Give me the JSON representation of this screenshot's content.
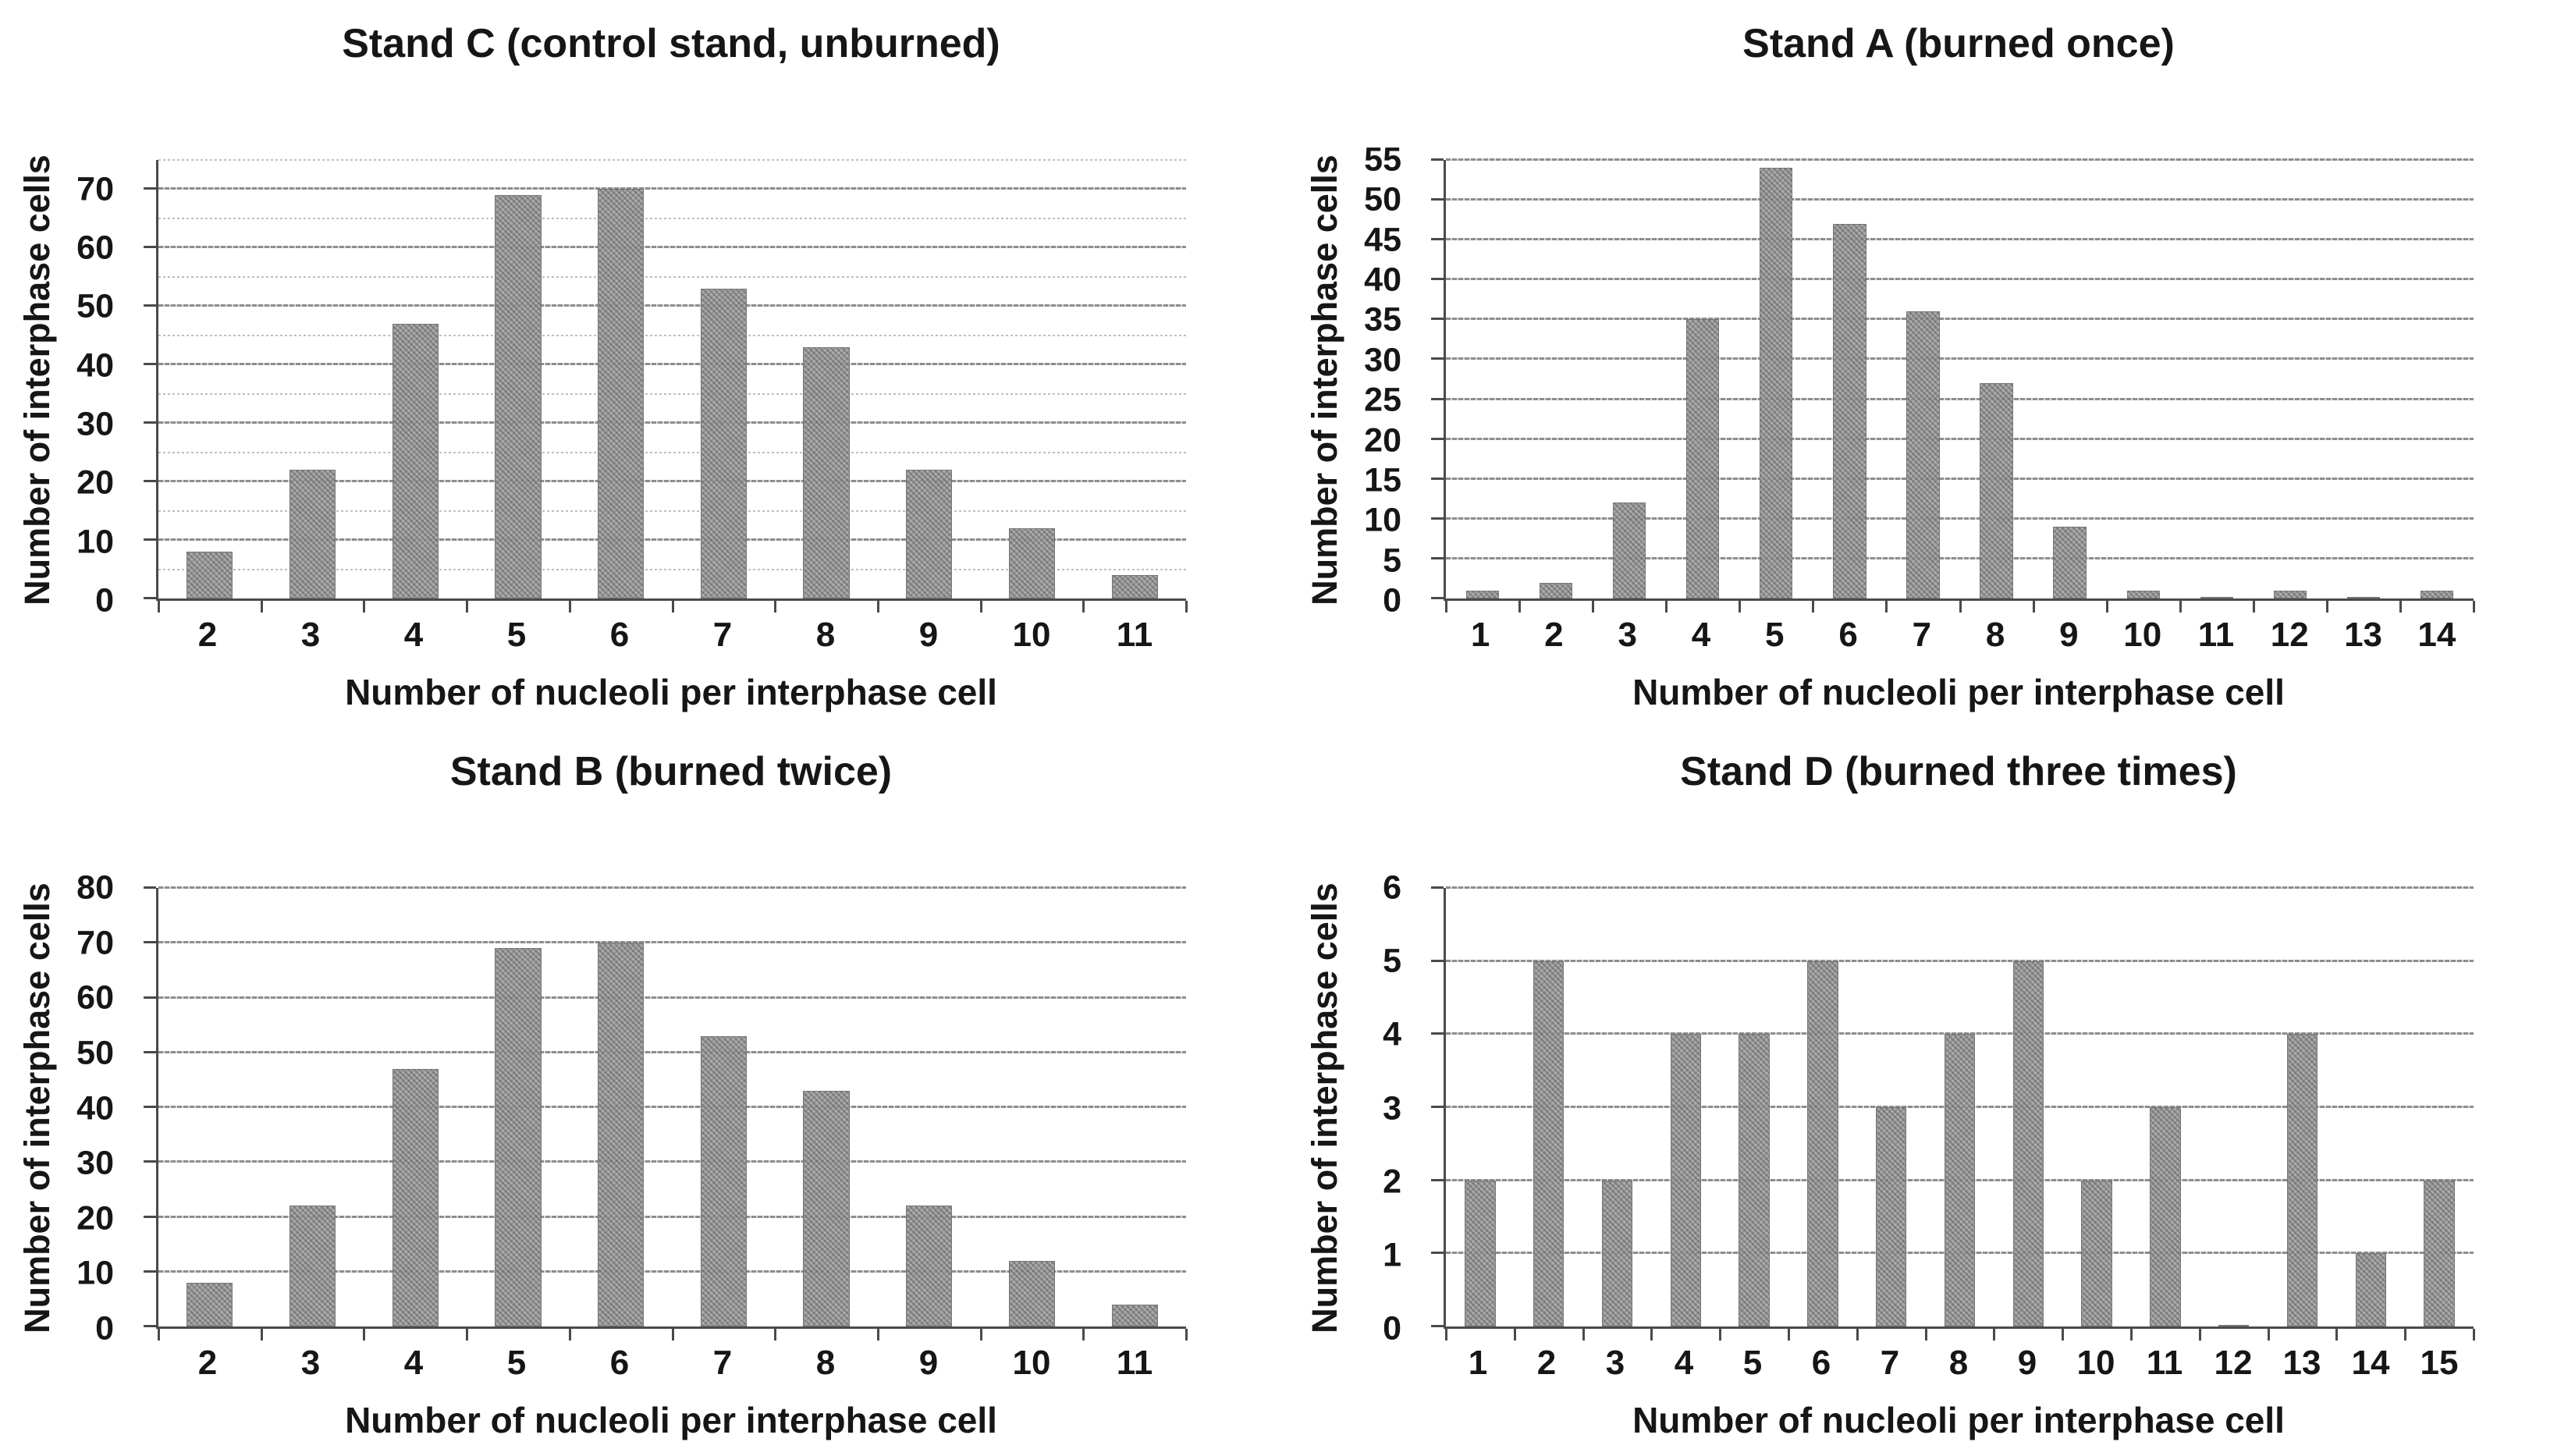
{
  "page": {
    "background": "#ffffff"
  },
  "colors": {
    "bar_fill": "#939393",
    "bar_border": "#6e6e6e",
    "major_gridline": "#8d8d8d",
    "minor_gridline": "#bfbfbf",
    "axis": "#4a4a4a",
    "text": "#161616"
  },
  "chart_data": [
    {
      "type": "bar",
      "title": "Stand C (control stand, unburned)",
      "xlabel": "Number of nucleoli per interphase cell",
      "ylabel": "Number of interphase cells",
      "categories": [
        "2",
        "3",
        "4",
        "5",
        "6",
        "7",
        "8",
        "9",
        "10",
        "11"
      ],
      "values": [
        8,
        22,
        47,
        69,
        70,
        53,
        43,
        22,
        12,
        4
      ],
      "ylim": [
        0,
        75
      ],
      "y_ticks": [
        0,
        10,
        20,
        30,
        40,
        50,
        60,
        70
      ],
      "grid_step": 5,
      "grid": "on",
      "legend": "none"
    },
    {
      "type": "bar",
      "title": "Stand A (burned once)",
      "xlabel": "Number of nucleoli per interphase cell",
      "ylabel": "Number of interphase cells",
      "categories": [
        "1",
        "2",
        "3",
        "4",
        "5",
        "6",
        "7",
        "8",
        "9",
        "10",
        "11",
        "12",
        "13",
        "14"
      ],
      "values": [
        1,
        2,
        12,
        35,
        54,
        47,
        36,
        27,
        9,
        1,
        0,
        1,
        0,
        1
      ],
      "ylim": [
        0,
        55
      ],
      "y_ticks": [
        0,
        5,
        10,
        15,
        20,
        25,
        30,
        35,
        40,
        45,
        50,
        55
      ],
      "grid_step": 5,
      "grid": "on",
      "legend": "none"
    },
    {
      "type": "bar",
      "title": "Stand B (burned twice)",
      "xlabel": "Number of nucleoli per interphase cell",
      "ylabel": "Number of interphase cells",
      "categories": [
        "2",
        "3",
        "4",
        "5",
        "6",
        "7",
        "8",
        "9",
        "10",
        "11"
      ],
      "values": [
        8,
        22,
        47,
        69,
        70,
        53,
        43,
        22,
        12,
        4
      ],
      "ylim": [
        0,
        80
      ],
      "y_ticks": [
        0,
        10,
        20,
        30,
        40,
        50,
        60,
        70,
        80
      ],
      "grid_step": 10,
      "grid": "on",
      "legend": "none"
    },
    {
      "type": "bar",
      "title": "Stand D (burned three times)",
      "xlabel": "Number of nucleoli per interphase cell",
      "ylabel": "Number of interphase cells",
      "categories": [
        "1",
        "2",
        "3",
        "4",
        "5",
        "6",
        "7",
        "8",
        "9",
        "10",
        "11",
        "12",
        "13",
        "14",
        "15"
      ],
      "values": [
        2,
        5,
        2,
        4,
        4,
        5,
        3,
        4,
        5,
        2,
        3,
        0,
        4,
        1,
        2
      ],
      "ylim": [
        0,
        6
      ],
      "y_ticks": [
        0,
        1,
        2,
        3,
        4,
        5,
        6
      ],
      "grid_step": 1,
      "grid": "on",
      "legend": "none"
    }
  ]
}
